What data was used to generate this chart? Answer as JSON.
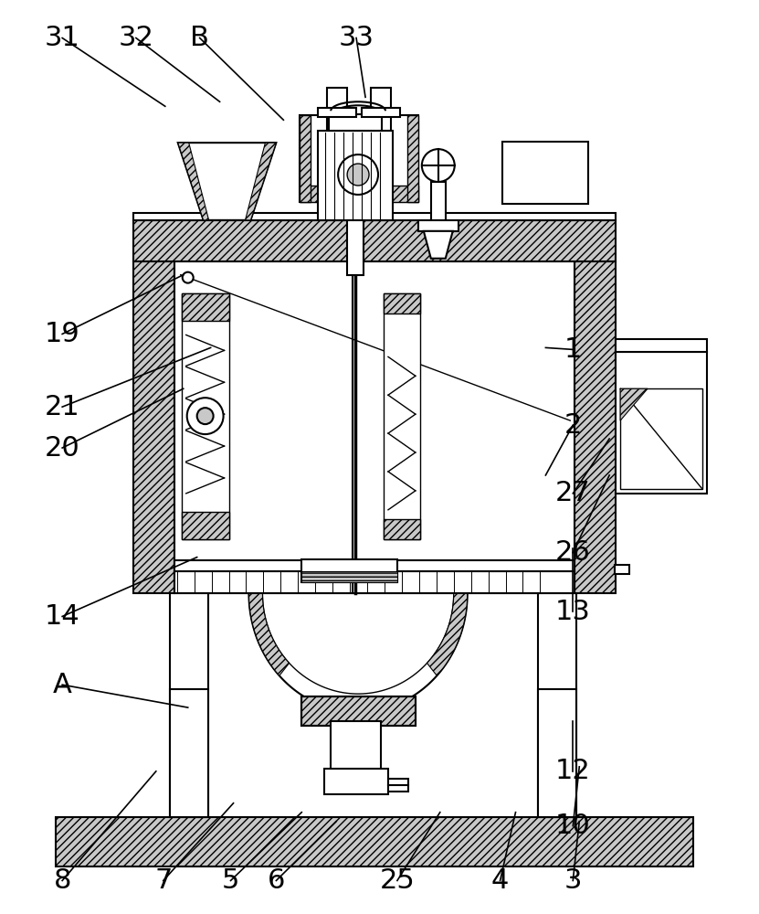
{
  "bg": "#ffffff",
  "lc": "#000000",
  "lw": 1.5,
  "lw2": 1.0,
  "fs": 22,
  "hatch": "////",
  "gray": "#c8c8c8",
  "annotations": [
    [
      "8",
      170,
      155,
      67,
      35
    ],
    [
      "7",
      255,
      120,
      178,
      35
    ],
    [
      "5",
      330,
      110,
      252,
      35
    ],
    [
      "6",
      368,
      100,
      302,
      35
    ],
    [
      "25",
      482,
      110,
      435,
      35
    ],
    [
      "4",
      565,
      110,
      548,
      35
    ],
    [
      "3",
      635,
      100,
      628,
      35
    ],
    [
      "10",
      635,
      160,
      628,
      95
    ],
    [
      "12",
      628,
      210,
      628,
      155
    ],
    [
      "A",
      205,
      225,
      67,
      250
    ],
    [
      "14",
      215,
      390,
      67,
      325
    ],
    [
      "13",
      628,
      400,
      628,
      330
    ],
    [
      "26",
      668,
      480,
      628,
      395
    ],
    [
      "27",
      668,
      520,
      628,
      460
    ],
    [
      "20",
      200,
      575,
      67,
      510
    ],
    [
      "21",
      230,
      620,
      67,
      555
    ],
    [
      "19",
      200,
      700,
      67,
      635
    ],
    [
      "2",
      598,
      480,
      628,
      535
    ],
    [
      "1",
      598,
      620,
      628,
      618
    ],
    [
      "31",
      180,
      885,
      67,
      960
    ],
    [
      "32",
      240,
      890,
      148,
      960
    ],
    [
      "B",
      310,
      870,
      218,
      960
    ],
    [
      "33",
      400,
      895,
      390,
      960
    ]
  ]
}
